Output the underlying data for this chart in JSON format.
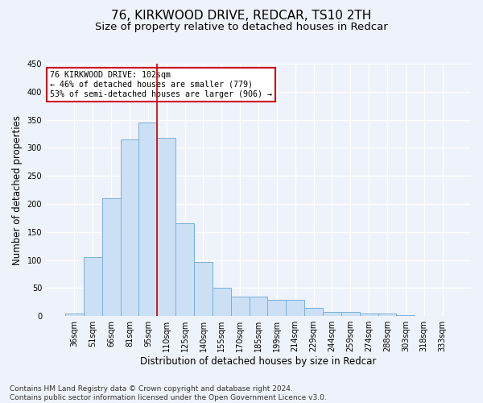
{
  "title": "76, KIRKWOOD DRIVE, REDCAR, TS10 2TH",
  "subtitle": "Size of property relative to detached houses in Redcar",
  "xlabel": "Distribution of detached houses by size in Redcar",
  "ylabel": "Number of detached properties",
  "footer_line1": "Contains HM Land Registry data © Crown copyright and database right 2024.",
  "footer_line2": "Contains public sector information licensed under the Open Government Licence v3.0.",
  "bar_labels": [
    "36sqm",
    "51sqm",
    "66sqm",
    "81sqm",
    "95sqm",
    "110sqm",
    "125sqm",
    "140sqm",
    "155sqm",
    "170sqm",
    "185sqm",
    "199sqm",
    "214sqm",
    "229sqm",
    "244sqm",
    "259sqm",
    "274sqm",
    "288sqm",
    "303sqm",
    "318sqm",
    "333sqm"
  ],
  "bar_values": [
    5,
    105,
    210,
    315,
    345,
    318,
    165,
    97,
    50,
    35,
    35,
    29,
    29,
    15,
    8,
    8,
    5,
    5,
    2,
    1,
    1
  ],
  "bar_color": "#cce0f5",
  "bar_edge_color": "#7ab0d8",
  "vline_x": 4.5,
  "vline_color": "#cc0000",
  "annotation_text": "76 KIRKWOOD DRIVE: 102sqm\n← 46% of detached houses are smaller (779)\n53% of semi-detached houses are larger (906) →",
  "annotation_box_color": "#ffffff",
  "annotation_box_edge_color": "#cc0000",
  "ylim": [
    0,
    450
  ],
  "yticks": [
    0,
    50,
    100,
    150,
    200,
    250,
    300,
    350,
    400,
    450
  ],
  "background_color": "#eef2fa",
  "plot_background_color": "#eef2fa",
  "grid_color": "#ffffff",
  "title_fontsize": 11,
  "subtitle_fontsize": 9.5,
  "tick_fontsize": 7,
  "ylabel_fontsize": 8.5,
  "xlabel_fontsize": 8.5,
  "footer_fontsize": 6.5
}
